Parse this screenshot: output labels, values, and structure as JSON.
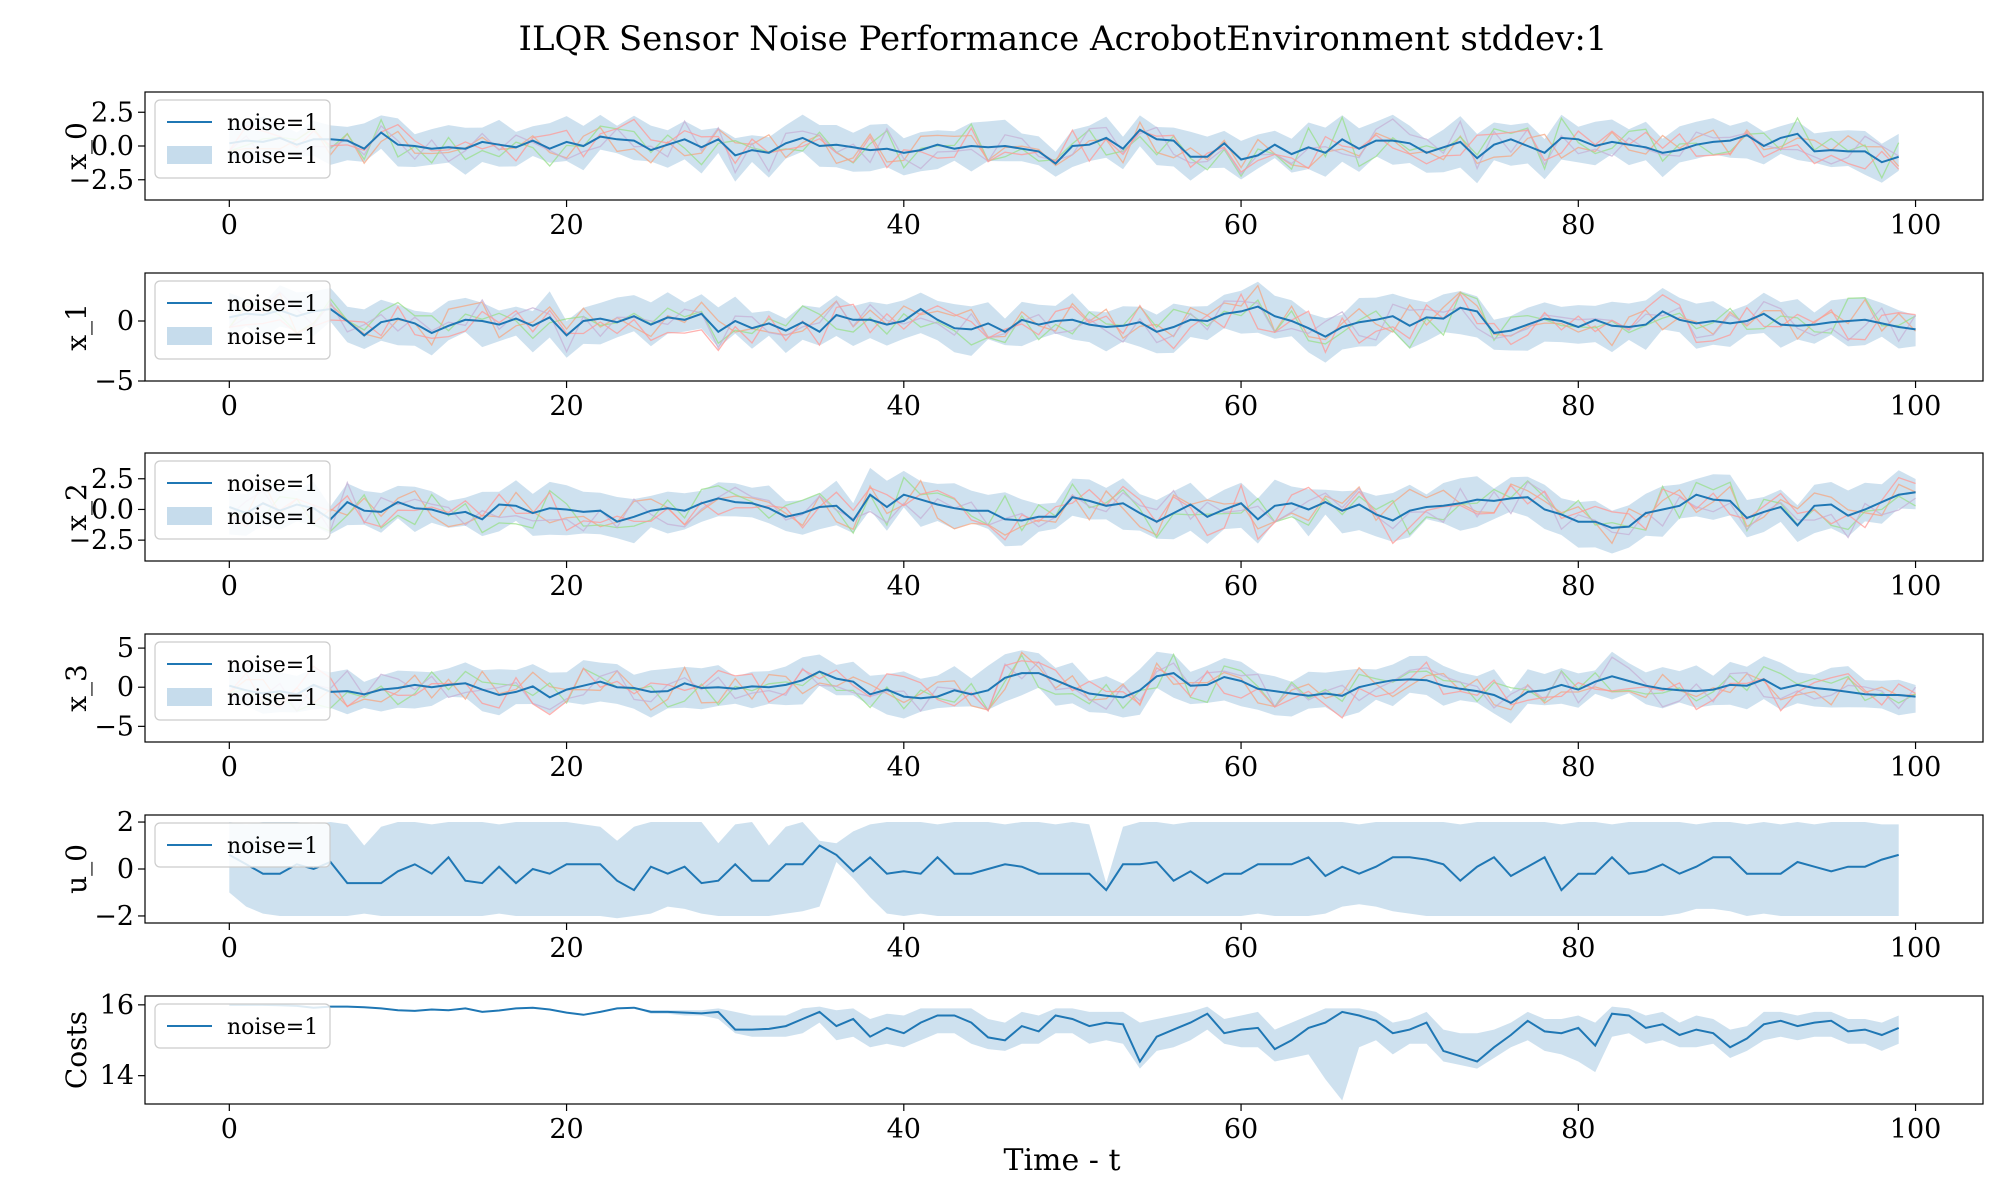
{
  "chart_data": {
    "type": "line",
    "title": "ILQR Sensor Noise Performance AcrobotEnvironment stddev:1",
    "xlabel": "Time - t",
    "xlim": [
      -5,
      104
    ],
    "xticks": [
      0,
      20,
      40,
      60,
      80,
      100
    ],
    "colors": {
      "mean": "#1f77b4",
      "band": "#c6dcec",
      "traces": [
        "#f4a582",
        "#98df8a",
        "#c5b0d5",
        "#ff9896",
        "#aec7e8"
      ]
    },
    "legend": {
      "placement": "upper-left"
    },
    "panels": [
      {
        "ylabel": "x_0",
        "ylim": [
          -4.0,
          4.0
        ],
        "yticks": [
          2.5,
          0.0,
          -2.5
        ],
        "ytick_labels": [
          "2.5",
          "0.0",
          "−2.5"
        ],
        "legend_entries": [
          "noise=1",
          "noise=1"
        ],
        "band_halfwidth": 1.4,
        "mean": [
          0.2,
          0.4,
          0.3,
          0.6,
          0.1,
          0.5,
          0.5,
          0.4,
          -0.2,
          1.0,
          0.1,
          0.0,
          -0.2,
          -0.1,
          -0.2,
          0.3,
          0.1,
          -0.1,
          0.4,
          -0.2,
          0.3,
          0.0,
          0.7,
          0.5,
          0.4,
          -0.3,
          0.1,
          0.5,
          -0.1,
          0.5,
          -0.7,
          -0.3,
          -0.5,
          0.2,
          0.6,
          0.0,
          0.1,
          -0.1,
          -0.3,
          -0.2,
          -0.5,
          -0.3,
          0.1,
          -0.2,
          0.0,
          -0.1,
          0.0,
          -0.2,
          -0.4,
          -1.3,
          0.0,
          0.1,
          0.6,
          -0.2,
          1.2,
          0.5,
          0.4,
          -0.8,
          -0.8,
          0.2,
          -1.0,
          -0.7,
          0.1,
          -0.6,
          -0.1,
          -0.5,
          0.5,
          -0.2,
          0.4,
          0.4,
          0.2,
          -0.5,
          -0.1,
          0.3,
          -0.9,
          0.1,
          0.5,
          0.0,
          -0.5,
          0.6,
          0.5,
          0.0,
          0.3,
          0.1,
          -0.1,
          -0.5,
          -0.3,
          0.1,
          0.3,
          0.4,
          0.8,
          0.0,
          0.6,
          0.9,
          -0.4,
          -0.3,
          -0.4,
          -0.4,
          -1.2,
          -0.8
        ],
        "trace_count": 4,
        "trace_seeds": [
          11,
          23,
          37,
          51
        ]
      },
      {
        "ylabel": "x_1",
        "ylim": [
          -5.0,
          4.0
        ],
        "yticks": [
          0,
          -5
        ],
        "ytick_labels": [
          "0",
          "−5"
        ],
        "legend_entries": [
          "noise=1",
          "noise=1"
        ],
        "band_halfwidth": 1.6,
        "mean": [
          0.3,
          0.6,
          0.5,
          0.9,
          0.4,
          0.8,
          1.0,
          0.0,
          -1.2,
          -0.1,
          0.2,
          -0.2,
          -1.0,
          -0.4,
          0.1,
          0.0,
          -0.3,
          0.2,
          -0.4,
          0.3,
          -1.2,
          0.0,
          0.2,
          -0.1,
          0.4,
          -0.3,
          0.3,
          0.1,
          0.6,
          -0.9,
          0.0,
          -0.6,
          -0.2,
          -0.8,
          -0.1,
          -0.9,
          0.5,
          0.1,
          0.1,
          -0.3,
          0.0,
          1.0,
          0.1,
          -0.6,
          -0.7,
          -0.2,
          -0.9,
          0.1,
          -0.3,
          0.0,
          0.1,
          -0.3,
          -0.5,
          -0.4,
          -0.1,
          -0.9,
          -0.5,
          0.1,
          0.0,
          0.6,
          0.8,
          1.2,
          0.4,
          0.0,
          -0.6,
          -1.3,
          -0.5,
          -0.1,
          0.1,
          0.4,
          -0.4,
          0.3,
          0.2,
          1.1,
          0.8,
          -1.0,
          -0.8,
          -0.3,
          0.2,
          0.0,
          -0.5,
          0.1,
          -0.4,
          -0.5,
          -0.3,
          0.8,
          0.1,
          -0.2,
          0.0,
          -0.2,
          0.0,
          0.6,
          -0.3,
          -0.4,
          -0.3,
          -0.1,
          0.0,
          0.1,
          -0.2,
          -0.5,
          -0.7
        ],
        "trace_count": 4,
        "trace_seeds": [
          61,
          73,
          89,
          97
        ]
      },
      {
        "ylabel": "x_2",
        "ylim": [
          -4.2,
          4.6
        ],
        "yticks": [
          2.5,
          0.0,
          -2.5
        ],
        "ytick_labels": [
          "2.5",
          "0.0",
          "−2.5"
        ],
        "legend_entries": [
          "noise=1",
          "noise=1"
        ],
        "band_halfwidth": 1.6,
        "mean": [
          0.2,
          -0.3,
          0.5,
          -0.1,
          0.4,
          0.1,
          -0.8,
          0.6,
          -0.1,
          -0.2,
          0.6,
          0.1,
          0.0,
          -0.4,
          -0.2,
          -0.8,
          0.4,
          0.3,
          -0.3,
          0.1,
          0.0,
          -0.2,
          -0.1,
          -1.0,
          -0.6,
          -0.1,
          0.1,
          -0.1,
          0.5,
          0.9,
          0.6,
          0.5,
          0.1,
          -0.6,
          -0.3,
          0.2,
          0.3,
          -0.9,
          1.2,
          0.2,
          1.2,
          0.8,
          0.4,
          0.1,
          -0.1,
          -0.1,
          -0.8,
          -0.9,
          -0.6,
          -0.6,
          1.0,
          0.7,
          0.3,
          0.5,
          -0.3,
          -1.0,
          -0.3,
          0.4,
          -0.6,
          0.0,
          0.5,
          -0.8,
          0.3,
          0.5,
          0.0,
          0.6,
          -0.1,
          0.4,
          -0.4,
          -0.9,
          -0.1,
          0.2,
          0.3,
          0.5,
          0.8,
          0.7,
          0.9,
          1.0,
          0.0,
          -0.4,
          -1.0,
          -1.0,
          -1.5,
          -1.4,
          -0.3,
          0.0,
          0.3,
          1.2,
          0.8,
          0.7,
          -0.7,
          -0.2,
          0.2,
          -1.3,
          0.3,
          0.4,
          -0.5,
          0.0,
          0.6,
          1.2,
          1.4
        ],
        "trace_count": 4,
        "trace_seeds": [
          101,
          113,
          127,
          131
        ]
      },
      {
        "ylabel": "x_3",
        "ylim": [
          -7.0,
          6.8
        ],
        "yticks": [
          5,
          0,
          -5
        ],
        "ytick_labels": [
          "5",
          "0",
          "−5"
        ],
        "legend_entries": [
          "noise=1",
          "noise=1"
        ],
        "band_halfwidth": 2.4,
        "mean": [
          0.2,
          -0.4,
          -0.8,
          -0.5,
          -0.9,
          0.3,
          -0.6,
          -0.5,
          -0.9,
          -0.3,
          -0.1,
          0.3,
          0.0,
          0.3,
          0.5,
          -0.3,
          -1.0,
          -0.6,
          0.1,
          -1.3,
          -0.3,
          0.2,
          0.7,
          0.0,
          -0.1,
          -0.6,
          -0.5,
          0.5,
          -0.1,
          0.0,
          -0.2,
          0.1,
          0.0,
          0.3,
          0.9,
          2.0,
          1.1,
          0.7,
          -0.9,
          -0.3,
          -1.2,
          -1.4,
          -1.2,
          -0.4,
          -0.9,
          -0.4,
          1.2,
          1.8,
          1.8,
          0.9,
          0.0,
          -0.8,
          -1.1,
          -1.3,
          -0.4,
          1.4,
          1.8,
          0.2,
          0.3,
          1.3,
          0.8,
          -0.2,
          -0.5,
          -0.8,
          -1.1,
          -0.8,
          -1.1,
          0.0,
          0.5,
          0.9,
          1.0,
          0.9,
          0.2,
          -0.2,
          -0.5,
          -1.0,
          -2.0,
          -0.6,
          -0.4,
          0.3,
          -0.3,
          0.7,
          1.4,
          0.8,
          0.2,
          -0.2,
          -0.4,
          -0.5,
          -0.3,
          0.3,
          0.2,
          1.0,
          -0.2,
          0.3,
          -0.1,
          -0.3,
          -0.6,
          -0.9,
          -1.0,
          -1.0,
          -1.2
        ],
        "trace_count": 4,
        "trace_seeds": [
          149,
          157,
          163,
          173
        ]
      },
      {
        "ylabel": "u_0",
        "ylim": [
          -2.3,
          2.3
        ],
        "yticks": [
          2,
          0,
          -2
        ],
        "ytick_labels": [
          "2",
          "0",
          "−2"
        ],
        "legend_entries": [
          "noise=1"
        ],
        "band_lower": [
          -1.0,
          -1.6,
          -1.9,
          -2.0,
          -2.0,
          -2.0,
          -2.0,
          -2.0,
          -1.9,
          -2.0,
          -2.0,
          -2.0,
          -2.0,
          -2.0,
          -2.0,
          -2.0,
          -1.9,
          -2.0,
          -2.0,
          -2.0,
          -2.0,
          -2.0,
          -2.0,
          -2.1,
          -2.0,
          -1.9,
          -1.6,
          -1.7,
          -1.9,
          -2.0,
          -2.0,
          -2.0,
          -2.0,
          -1.9,
          -1.8,
          -1.6,
          0.3,
          -0.4,
          -1.2,
          -1.9,
          -2.0,
          -1.9,
          -2.0,
          -2.0,
          -2.0,
          -2.0,
          -2.0,
          -2.0,
          -2.0,
          -2.0,
          -2.0,
          -2.0,
          -2.0,
          -2.0,
          -2.0,
          -2.0,
          -2.0,
          -2.0,
          -2.0,
          -2.0,
          -2.0,
          -1.9,
          -2.0,
          -2.0,
          -2.0,
          -1.9,
          -1.6,
          -1.5,
          -1.6,
          -1.8,
          -1.9,
          -2.0,
          -2.0,
          -2.0,
          -2.0,
          -2.0,
          -2.0,
          -2.0,
          -2.0,
          -2.0,
          -2.0,
          -2.0,
          -2.0,
          -2.0,
          -2.0,
          -2.0,
          -1.9,
          -1.7,
          -1.7,
          -1.8,
          -2.0,
          -1.9,
          -2.0,
          -2.0,
          -2.0,
          -2.0,
          -2.0,
          -2.0,
          -2.0,
          -2.0
        ],
        "band_upper": [
          2.0,
          1.9,
          2.0,
          2.0,
          2.0,
          1.9,
          2.0,
          1.9,
          1.0,
          1.8,
          2.0,
          2.0,
          1.9,
          2.0,
          2.0,
          2.0,
          1.9,
          2.0,
          2.0,
          2.0,
          2.0,
          1.9,
          1.8,
          1.2,
          1.8,
          2.0,
          2.0,
          2.0,
          2.0,
          1.1,
          1.9,
          2.0,
          1.0,
          1.8,
          2.0,
          1.2,
          1.1,
          1.6,
          1.9,
          2.0,
          2.0,
          2.0,
          1.9,
          2.0,
          2.0,
          2.0,
          1.9,
          2.0,
          2.0,
          1.9,
          2.0,
          1.9,
          -0.6,
          1.8,
          2.0,
          2.0,
          1.9,
          2.0,
          2.0,
          2.0,
          2.0,
          2.0,
          2.0,
          2.0,
          2.0,
          2.0,
          2.0,
          1.9,
          2.0,
          2.0,
          2.0,
          2.0,
          2.0,
          1.9,
          2.0,
          2.0,
          2.0,
          2.0,
          2.0,
          1.9,
          2.0,
          2.0,
          1.9,
          2.0,
          2.0,
          2.0,
          2.0,
          1.9,
          2.0,
          2.0,
          1.9,
          2.0,
          1.9,
          2.0,
          1.9,
          2.0,
          2.0,
          2.0,
          1.9,
          1.9
        ],
        "mean": [
          0.6,
          0.2,
          -0.2,
          -0.2,
          0.2,
          0.0,
          0.3,
          -0.6,
          -0.6,
          -0.6,
          -0.1,
          0.2,
          -0.2,
          0.5,
          -0.5,
          -0.6,
          0.1,
          -0.6,
          0.0,
          -0.2,
          0.2,
          0.2,
          0.2,
          -0.5,
          -0.9,
          0.1,
          -0.2,
          0.1,
          -0.6,
          -0.5,
          0.2,
          -0.5,
          -0.5,
          0.2,
          0.2,
          1.0,
          0.6,
          -0.1,
          0.5,
          -0.2,
          -0.1,
          -0.2,
          0.5,
          -0.2,
          -0.2,
          0.0,
          0.2,
          0.1,
          -0.2,
          -0.2,
          -0.2,
          -0.2,
          -0.9,
          0.2,
          0.2,
          0.3,
          -0.5,
          -0.1,
          -0.6,
          -0.2,
          -0.2,
          0.2,
          0.2,
          0.2,
          0.5,
          -0.3,
          0.1,
          -0.2,
          0.1,
          0.5,
          0.5,
          0.4,
          0.2,
          -0.5,
          0.1,
          0.5,
          -0.3,
          0.1,
          0.5,
          -0.9,
          -0.2,
          -0.2,
          0.5,
          -0.2,
          -0.1,
          0.2,
          -0.2,
          0.1,
          0.5,
          0.5,
          -0.2,
          -0.2,
          -0.2,
          0.3,
          0.1,
          -0.1,
          0.1,
          0.1,
          0.4,
          0.6
        ]
      },
      {
        "ylabel": "Costs",
        "ylim": [
          13.2,
          16.25
        ],
        "yticks": [
          16,
          14
        ],
        "ytick_labels": [
          "16",
          "14"
        ],
        "legend_entries": [
          "noise=1"
        ],
        "mean": [
          16.0,
          16.0,
          16.0,
          15.99,
          15.97,
          15.92,
          15.95,
          15.95,
          15.93,
          15.9,
          15.85,
          15.83,
          15.87,
          15.85,
          15.9,
          15.8,
          15.84,
          15.9,
          15.92,
          15.87,
          15.78,
          15.72,
          15.8,
          15.9,
          15.92,
          15.8,
          15.8,
          15.78,
          15.76,
          15.8,
          15.3,
          15.3,
          15.32,
          15.4,
          15.6,
          15.8,
          15.4,
          15.6,
          15.1,
          15.35,
          15.2,
          15.5,
          15.7,
          15.7,
          15.5,
          15.08,
          15.0,
          15.4,
          15.25,
          15.7,
          15.6,
          15.4,
          15.5,
          15.45,
          14.4,
          15.1,
          15.3,
          15.5,
          15.75,
          15.2,
          15.3,
          15.35,
          14.75,
          15.0,
          15.35,
          15.5,
          15.8,
          15.7,
          15.55,
          15.2,
          15.3,
          15.5,
          14.7,
          14.55,
          14.4,
          14.8,
          15.15,
          15.55,
          15.25,
          15.2,
          15.35,
          14.85,
          15.75,
          15.7,
          15.35,
          15.45,
          15.15,
          15.3,
          15.2,
          14.8,
          15.05,
          15.45,
          15.55,
          15.4,
          15.5,
          15.55,
          15.25,
          15.3,
          15.15,
          15.35
        ],
        "band_lower": [
          16.0,
          16.0,
          16.0,
          15.99,
          15.97,
          15.92,
          15.95,
          15.95,
          15.93,
          15.9,
          15.85,
          15.83,
          15.87,
          15.85,
          15.9,
          15.8,
          15.84,
          15.9,
          15.92,
          15.87,
          15.78,
          15.72,
          15.8,
          15.9,
          15.92,
          15.75,
          15.75,
          15.7,
          15.7,
          15.6,
          15.2,
          15.1,
          15.1,
          15.1,
          15.2,
          15.5,
          15.0,
          15.1,
          14.8,
          14.9,
          14.8,
          15.0,
          15.2,
          15.2,
          14.9,
          14.75,
          14.7,
          14.9,
          14.9,
          15.2,
          15.2,
          14.9,
          15.0,
          14.9,
          14.2,
          14.7,
          14.8,
          15.0,
          15.3,
          14.9,
          14.8,
          14.8,
          14.4,
          14.5,
          14.6,
          13.9,
          13.3,
          14.8,
          15.0,
          14.6,
          14.9,
          14.9,
          14.4,
          14.3,
          14.2,
          14.5,
          14.8,
          15.0,
          14.7,
          14.6,
          14.4,
          14.1,
          15.1,
          15.2,
          14.9,
          15.0,
          14.8,
          14.8,
          14.9,
          14.5,
          14.7,
          15.0,
          15.1,
          15.0,
          15.1,
          15.1,
          14.9,
          14.9,
          14.7,
          14.9
        ],
        "band_upper": [
          16.0,
          16.0,
          16.0,
          15.99,
          15.97,
          15.92,
          15.95,
          15.95,
          15.93,
          15.9,
          15.85,
          15.83,
          15.87,
          15.85,
          15.9,
          15.8,
          15.84,
          15.9,
          15.92,
          15.87,
          15.78,
          15.72,
          15.8,
          15.9,
          15.92,
          15.85,
          15.85,
          15.85,
          15.85,
          15.9,
          15.8,
          15.7,
          15.7,
          15.7,
          15.9,
          15.95,
          15.85,
          15.9,
          15.6,
          15.75,
          15.7,
          15.9,
          15.9,
          15.9,
          15.9,
          15.6,
          15.5,
          15.8,
          15.7,
          15.9,
          15.9,
          15.8,
          15.8,
          15.8,
          15.5,
          15.6,
          15.7,
          15.8,
          15.95,
          15.6,
          15.7,
          15.8,
          15.3,
          15.5,
          15.7,
          15.9,
          15.9,
          15.9,
          15.8,
          15.5,
          15.6,
          15.8,
          15.3,
          15.2,
          15.2,
          15.3,
          15.5,
          15.8,
          15.6,
          15.6,
          15.7,
          15.5,
          15.95,
          15.9,
          15.7,
          15.8,
          15.5,
          15.7,
          15.6,
          15.3,
          15.4,
          15.8,
          15.8,
          15.7,
          15.8,
          15.8,
          15.6,
          15.6,
          15.5,
          15.7
        ]
      }
    ]
  }
}
